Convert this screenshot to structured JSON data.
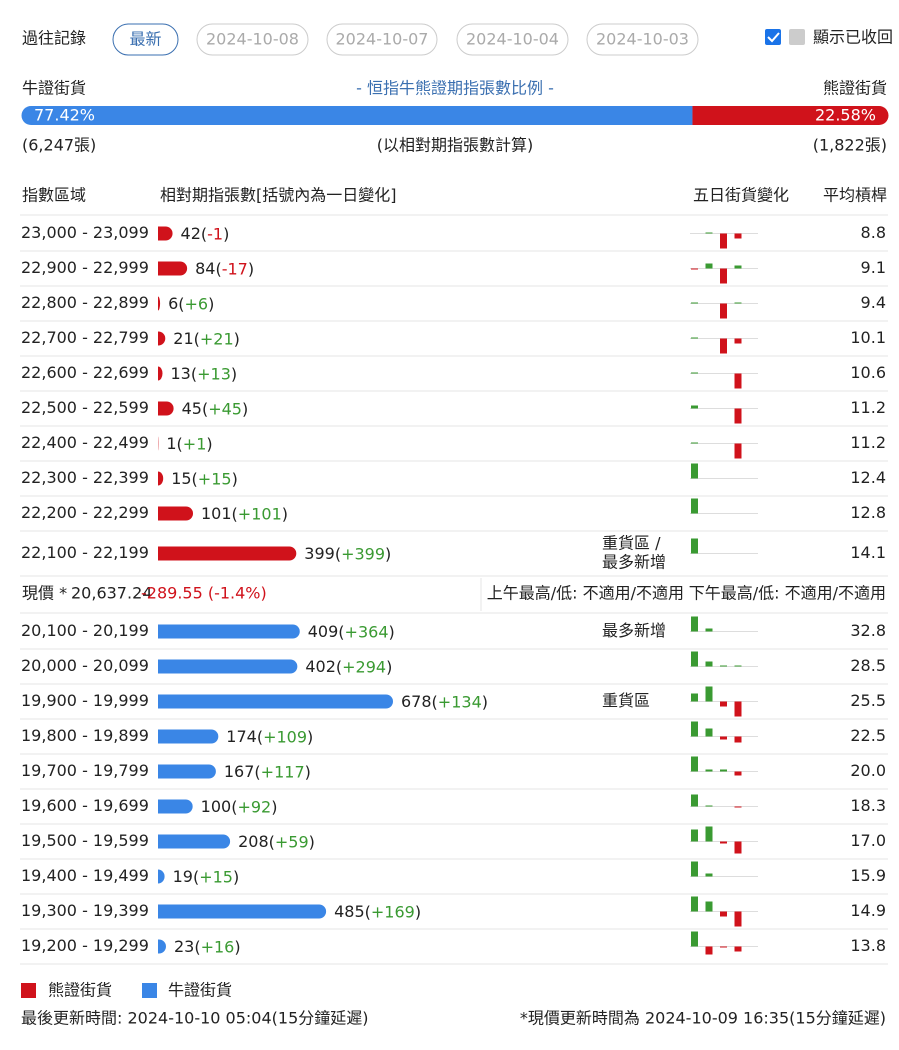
{
  "toolbar": {
    "label": "過往記錄",
    "buttons": [
      "最新",
      "2024-10-08",
      "2024-10-07",
      "2024-10-04",
      "2024-10-03"
    ],
    "checkbox_label": "顯示已收回"
  },
  "ratio": {
    "bull_label": "牛證街貨",
    "title": "- 恒指牛熊證期指張數比例 -",
    "bear_label": "熊證街貨",
    "bull_pct": 77.42,
    "bull_pct_label": "77.42%",
    "bear_pct": 22.58,
    "bear_pct_label": "22.58%",
    "bull_count": "(6,247張)",
    "note": "(以相對期指張數計算)",
    "bear_count": "(1,822張)"
  },
  "table": {
    "headers": [
      "指數區域",
      "相對期指張數[括號內為一日變化]",
      "五日街貨變化",
      "平均槓桿"
    ],
    "bear_rows": [
      {
        "range": "23,000 - 23,099",
        "count": 42,
        "change_label": "(-1)",
        "five_day": [
          0,
          1,
          -15,
          -5,
          0
        ],
        "leverage": "8.8"
      },
      {
        "range": "22,900 - 22,999",
        "count": 84,
        "change_label": "(-17)",
        "five_day": [
          -1,
          5,
          -15,
          3,
          0
        ],
        "leverage": "9.1"
      },
      {
        "range": "22,800 - 22,899",
        "count": 6,
        "change_label": "(+6)",
        "five_day": [
          1,
          0,
          -15,
          1,
          0
        ],
        "leverage": "9.4"
      },
      {
        "range": "22,700 - 22,799",
        "count": 21,
        "change_label": "(+21)",
        "five_day": [
          1,
          0,
          -15,
          -5,
          0
        ],
        "leverage": "10.1"
      },
      {
        "range": "22,600 - 22,699",
        "count": 13,
        "change_label": "(+13)",
        "five_day": [
          1,
          0,
          0,
          -15,
          0
        ],
        "leverage": "10.6"
      },
      {
        "range": "22,500 - 22,599",
        "count": 45,
        "change_label": "(+45)",
        "five_day": [
          3,
          0,
          0,
          -15,
          0
        ],
        "leverage": "11.2"
      },
      {
        "range": "22,400 - 22,499",
        "count": 1,
        "change_label": "(+1)",
        "five_day": [
          1,
          0,
          0,
          -15,
          0
        ],
        "leverage": "11.2"
      },
      {
        "range": "22,300 - 22,399",
        "count": 15,
        "change_label": "(+15)",
        "five_day": [
          15,
          0,
          0,
          0,
          0
        ],
        "leverage": "12.4"
      },
      {
        "range": "22,200 - 22,299",
        "count": 101,
        "change_label": "(+101)",
        "five_day": [
          15,
          0,
          0,
          0,
          0
        ],
        "leverage": "12.8"
      },
      {
        "range": "22,100 - 22,199",
        "count": 399,
        "change_label": "(+399)",
        "note": [
          "重貨區 /",
          "最多新增"
        ],
        "five_day": [
          15,
          0,
          0,
          0,
          0
        ],
        "leverage": "14.1"
      }
    ],
    "price": {
      "label": "現價 *",
      "value": "20,637.24",
      "change": "-289.55 (-1.4%)",
      "am": "上午最高/低: 不適用/不適用",
      "pm": "下午最高/低: 不適用/不適用"
    },
    "bull_rows": [
      {
        "range": "20,100 - 20,199",
        "count": 409,
        "change_label": "(+364)",
        "note": [
          "最多新增"
        ],
        "five_day": [
          15,
          3,
          0,
          0,
          0
        ],
        "leverage": "32.8"
      },
      {
        "range": "20,000 - 20,099",
        "count": 402,
        "change_label": "(+294)",
        "five_day": [
          15,
          5,
          1,
          1,
          0
        ],
        "leverage": "28.5"
      },
      {
        "range": "19,900 - 19,999",
        "count": 678,
        "change_label": "(+134)",
        "note": [
          "重貨區"
        ],
        "five_day": [
          8,
          15,
          -5,
          -15,
          0
        ],
        "leverage": "25.5"
      },
      {
        "range": "19,800 - 19,899",
        "count": 174,
        "change_label": "(+109)",
        "five_day": [
          15,
          8,
          -3,
          -6,
          0
        ],
        "leverage": "22.5"
      },
      {
        "range": "19,700 - 19,799",
        "count": 167,
        "change_label": "(+117)",
        "five_day": [
          15,
          2,
          2,
          -4,
          0
        ],
        "leverage": "20.0"
      },
      {
        "range": "19,600 - 19,699",
        "count": 100,
        "change_label": "(+92)",
        "five_day": [
          12,
          1,
          0,
          -1,
          0
        ],
        "leverage": "18.3"
      },
      {
        "range": "19,500 - 19,599",
        "count": 208,
        "change_label": "(+59)",
        "five_day": [
          12,
          15,
          -2,
          -12,
          0
        ],
        "leverage": "17.0"
      },
      {
        "range": "19,400 - 19,499",
        "count": 19,
        "change_label": "(+15)",
        "five_day": [
          15,
          3,
          0,
          0,
          0
        ],
        "leverage": "15.9"
      },
      {
        "range": "19,300 - 19,399",
        "count": 485,
        "change_label": "(+169)",
        "five_day": [
          15,
          10,
          -5,
          -15,
          0
        ],
        "leverage": "14.9"
      },
      {
        "range": "19,200 - 19,299",
        "count": 23,
        "change_label": "(+16)",
        "five_day": [
          15,
          -8,
          -1,
          -5,
          0
        ],
        "leverage": "13.8"
      }
    ]
  },
  "legend": [
    "熊證街貨",
    "牛證街貨"
  ],
  "footer": {
    "left": "最後更新時間: 2024-10-10 05:04(15分鐘延遲)",
    "right": "*現價更新時間為 2024-10-09 16:35(15分鐘延遲)"
  }
}
